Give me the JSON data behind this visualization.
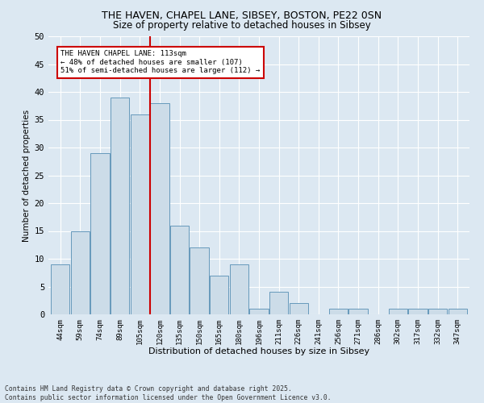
{
  "title_line1": "THE HAVEN, CHAPEL LANE, SIBSEY, BOSTON, PE22 0SN",
  "title_line2": "Size of property relative to detached houses in Sibsey",
  "xlabel": "Distribution of detached houses by size in Sibsey",
  "ylabel": "Number of detached properties",
  "categories": [
    "44sqm",
    "59sqm",
    "74sqm",
    "89sqm",
    "105sqm",
    "120sqm",
    "135sqm",
    "150sqm",
    "165sqm",
    "180sqm",
    "196sqm",
    "211sqm",
    "226sqm",
    "241sqm",
    "256sqm",
    "271sqm",
    "286sqm",
    "302sqm",
    "317sqm",
    "332sqm",
    "347sqm"
  ],
  "values": [
    9,
    15,
    29,
    39,
    36,
    38,
    16,
    12,
    7,
    9,
    1,
    4,
    2,
    0,
    1,
    1,
    0,
    1,
    1,
    1,
    1
  ],
  "bar_color": "#ccdce8",
  "bar_edge_color": "#6699bb",
  "vline_x_index": 4.5,
  "vline_color": "#cc0000",
  "annotation_text": "THE HAVEN CHAPEL LANE: 113sqm\n← 48% of detached houses are smaller (107)\n51% of semi-detached houses are larger (112) →",
  "annotation_box_color": "#ffffff",
  "annotation_box_edge_color": "#cc0000",
  "ylim": [
    0,
    50
  ],
  "yticks": [
    0,
    5,
    10,
    15,
    20,
    25,
    30,
    35,
    40,
    45,
    50
  ],
  "background_color": "#dce8f2",
  "grid_color": "#ffffff",
  "footnote": "Contains HM Land Registry data © Crown copyright and database right 2025.\nContains public sector information licensed under the Open Government Licence v3.0."
}
